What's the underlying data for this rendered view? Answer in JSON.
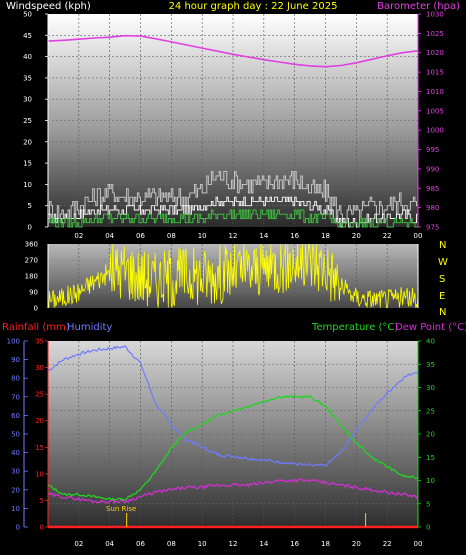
{
  "header": {
    "left": "Windspeed (kph)",
    "center": "24 hour graph day : 22 June 2025",
    "right": "Barometer (hpa)"
  },
  "colors": {
    "wind": "#ffffff",
    "gust": "#cfcfcf",
    "avg_wind": "#3ec63e",
    "barometer": "#e040e0",
    "direction": "#ffff00",
    "temperature": "#22d422",
    "dewpoint": "#d030d0",
    "humidity": "#6f7bff",
    "rainfall": "#ff2020",
    "sunrise": "#ffd000",
    "title": "#ffff00"
  },
  "compass": [
    "N",
    "W",
    "S",
    "E",
    "N"
  ],
  "bottom_header": {
    "rainfall": "Rainfall (mm)",
    "humidity": "Humidity",
    "temperature": "Temperature (°C)",
    "dewpoint": "Dew Point (°C)"
  },
  "sunrise_label": "Sun Rise",
  "chart_data": [
    {
      "type": "line",
      "title": "24 hour graph day : 22 June 2025",
      "ylabel": "Windspeed (kph)",
      "ylabel_right": "Barometer (hpa)",
      "x_ticks": [
        "02",
        "04",
        "06",
        "08",
        "10",
        "12",
        "14",
        "16",
        "18",
        "20",
        "22",
        "00"
      ],
      "ylim": [
        0,
        50
      ],
      "y_ticks": [
        0,
        5,
        10,
        15,
        20,
        25,
        30,
        35,
        40,
        45,
        50
      ],
      "ylim_right": [
        975,
        1030
      ],
      "y_ticks_right": [
        975,
        980,
        985,
        990,
        995,
        1000,
        1005,
        1010,
        1015,
        1020,
        1025,
        1030
      ],
      "series": [
        {
          "name": "Windspeed (kph)",
          "x": [
            0,
            1,
            2,
            3,
            4,
            5,
            6,
            7,
            8,
            9,
            10,
            11,
            12,
            13,
            14,
            15,
            16,
            17,
            18,
            19,
            20,
            21,
            22,
            23,
            24
          ],
          "values": [
            2,
            2,
            3,
            4,
            4,
            4,
            4,
            4,
            4,
            4,
            5,
            6,
            6,
            6,
            6,
            6,
            6,
            5,
            4,
            1,
            1,
            2,
            2,
            3,
            2
          ]
        },
        {
          "name": "Gust (kph)",
          "x": [
            0,
            1,
            2,
            3,
            4,
            5,
            6,
            7,
            8,
            9,
            10,
            11,
            12,
            13,
            14,
            15,
            16,
            17,
            18,
            19,
            20,
            21,
            22,
            23,
            24
          ],
          "values": [
            4,
            3,
            5,
            7,
            8,
            7,
            7,
            7,
            7,
            7,
            9,
            12,
            11,
            10,
            10,
            11,
            11,
            9,
            8,
            3,
            3,
            5,
            5,
            6,
            5
          ]
        },
        {
          "name": "Average wind (kph)",
          "x": [
            0,
            1,
            2,
            3,
            4,
            5,
            6,
            7,
            8,
            9,
            10,
            11,
            12,
            13,
            14,
            15,
            16,
            17,
            18,
            19,
            20,
            21,
            22,
            23,
            24
          ],
          "values": [
            1,
            1,
            1,
            2,
            2,
            2,
            2,
            2,
            2,
            2,
            2,
            3,
            3,
            3,
            3,
            3,
            3,
            2,
            2,
            0.5,
            0.5,
            1,
            1,
            1,
            1
          ]
        },
        {
          "name": "Barometer (hpa)",
          "x": [
            0,
            1,
            2,
            3,
            4,
            5,
            6,
            7,
            8,
            9,
            10,
            11,
            12,
            13,
            14,
            15,
            16,
            17,
            18,
            19,
            20,
            21,
            22,
            23,
            24
          ],
          "values": [
            1023.0,
            1023.2,
            1023.5,
            1023.8,
            1024.0,
            1024.4,
            1024.3,
            1023.6,
            1022.8,
            1022.0,
            1021.2,
            1020.4,
            1019.6,
            1018.9,
            1018.2,
            1017.6,
            1017.0,
            1016.6,
            1016.4,
            1016.7,
            1017.4,
            1018.3,
            1019.2,
            1020.0,
            1020.5
          ]
        }
      ]
    },
    {
      "type": "scatter",
      "ylabel": "Wind direction",
      "ylim": [
        0,
        360
      ],
      "y_ticks": [
        0,
        90,
        180,
        270,
        360
      ],
      "series": [
        {
          "name": "Wind direction",
          "x": [
            0,
            1,
            2,
            3,
            4,
            5,
            6,
            7,
            8,
            9,
            10,
            11,
            12,
            13,
            14,
            15,
            16,
            17,
            18,
            19,
            20,
            21,
            22,
            23,
            24
          ],
          "values": [
            45,
            60,
            90,
            150,
            200,
            220,
            180,
            160,
            170,
            190,
            180,
            190,
            200,
            210,
            230,
            250,
            260,
            260,
            240,
            120,
            60,
            50,
            50,
            60,
            50
          ]
        }
      ]
    },
    {
      "type": "line",
      "x_ticks": [
        "02",
        "04",
        "06",
        "08",
        "10",
        "12",
        "14",
        "16",
        "18",
        "20",
        "22",
        "00"
      ],
      "ylim_left_humidity": [
        0,
        100
      ],
      "y_ticks_humidity": [
        0,
        10,
        20,
        30,
        40,
        50,
        60,
        70,
        80,
        90,
        100
      ],
      "ylim_left_rainfall": [
        0,
        35
      ],
      "y_ticks_rainfall": [
        0,
        5,
        10,
        15,
        20,
        25,
        30,
        35
      ],
      "ylim_right": [
        0,
        40
      ],
      "y_ticks_right": [
        0,
        5,
        10,
        15,
        20,
        25,
        30,
        35,
        40
      ],
      "series": [
        {
          "name": "Humidity",
          "x": [
            0,
            1,
            2,
            3,
            4,
            5,
            6,
            7,
            8,
            9,
            10,
            11,
            12,
            13,
            14,
            15,
            16,
            17,
            18,
            19,
            20,
            21,
            22,
            23,
            24
          ],
          "values": [
            84,
            90,
            93,
            95,
            96,
            97,
            88,
            66,
            55,
            47,
            43,
            39,
            38,
            37,
            36,
            35,
            34,
            33,
            33,
            40,
            52,
            63,
            72,
            80,
            84
          ]
        },
        {
          "name": "Temperature (°C)",
          "x": [
            0,
            1,
            2,
            3,
            4,
            5,
            6,
            7,
            8,
            9,
            10,
            11,
            12,
            13,
            14,
            15,
            16,
            17,
            18,
            19,
            20,
            21,
            22,
            23,
            24
          ],
          "values": [
            9,
            7,
            7,
            6.5,
            6,
            6,
            8,
            12,
            17,
            20.5,
            22,
            24,
            25,
            26,
            27,
            28,
            28,
            28,
            26,
            22,
            18,
            15,
            13,
            11,
            10.5
          ]
        },
        {
          "name": "Dew Point (°C)",
          "x": [
            0,
            1,
            2,
            3,
            4,
            5,
            6,
            7,
            8,
            9,
            10,
            11,
            12,
            13,
            14,
            15,
            16,
            17,
            18,
            19,
            20,
            21,
            22,
            23,
            24
          ],
          "values": [
            7,
            6.5,
            6,
            5.5,
            5.5,
            5.5,
            6.5,
            7.5,
            8,
            8.5,
            8.5,
            9,
            9,
            9,
            9.5,
            10,
            10,
            10,
            9.5,
            9,
            8.5,
            8,
            7.5,
            7,
            6.5
          ]
        },
        {
          "name": "Rainfall (mm)",
          "x": [
            0,
            1,
            2,
            3,
            4,
            5,
            6,
            7,
            8,
            9,
            10,
            11,
            12,
            13,
            14,
            15,
            16,
            17,
            18,
            19,
            20,
            21,
            22,
            23,
            24
          ],
          "values": [
            0,
            0,
            0,
            0,
            0,
            0,
            0,
            0,
            0,
            0,
            0,
            0,
            0,
            0,
            0,
            0,
            0,
            0,
            0,
            0,
            0,
            0,
            0,
            0,
            0
          ]
        }
      ],
      "annotations": [
        "Sun Rise"
      ]
    }
  ]
}
